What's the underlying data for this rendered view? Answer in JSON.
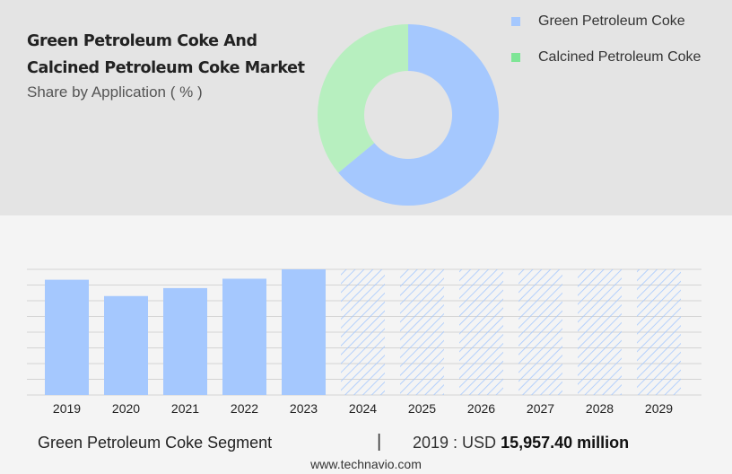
{
  "header": {
    "title_line1": "Green Petroleum Coke And",
    "title_line2": "Calcined Petroleum Coke Market",
    "subtitle": "Share by Application ( % )"
  },
  "legend": [
    {
      "label": "Green Petroleum Coke",
      "color": "#a5c8fe"
    },
    {
      "label": "Calcined Petroleum Coke",
      "color": "#7ee596"
    }
  ],
  "footer": {
    "segment": "Green Petroleum Coke Segment",
    "separator": "|",
    "year_label": "2019 : USD",
    "value": "15,957.40 million"
  },
  "watermark": "www.technavio.com",
  "chart_data": [
    {
      "type": "pie",
      "title": "Share by Application ( % )",
      "donut": true,
      "labels": [
        "Green Petroleum Coke",
        "Calcined Petroleum Coke"
      ],
      "values": [
        64,
        36
      ],
      "colors": [
        "#a5c8fe",
        "#b7efbf"
      ]
    },
    {
      "type": "bar",
      "categories": [
        "2019",
        "2020",
        "2021",
        "2022",
        "2023",
        "2024",
        "2025",
        "2026",
        "2027",
        "2028",
        "2029"
      ],
      "values": [
        15957.4,
        13700,
        14800,
        16100,
        17400,
        17400,
        17400,
        17400,
        17400,
        17400,
        17400
      ],
      "forecast_from": "2024",
      "ylim": [
        0,
        17400
      ],
      "grid": true,
      "colors": {
        "actual": "#a5c8fe",
        "forecast": "#a5c8fe"
      }
    }
  ]
}
